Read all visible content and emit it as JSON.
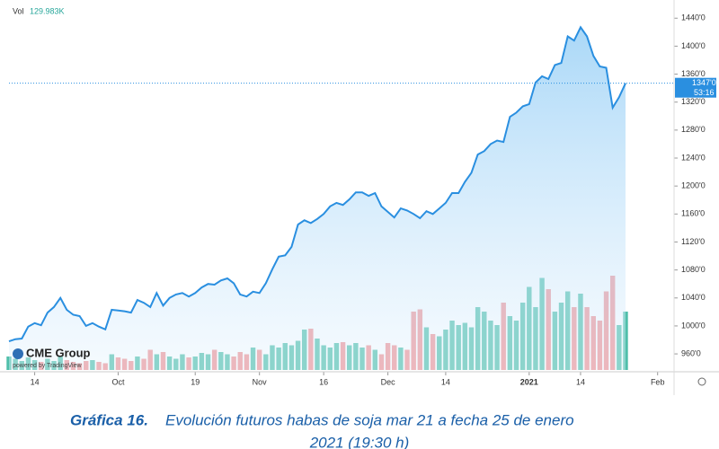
{
  "chart_data": {
    "type": "area",
    "volume_label": "Vol",
    "volume_value_label": "129.983K",
    "logo": "CME Group",
    "powered_by": "powered by TradingView",
    "price_marker": {
      "value": 1347,
      "label": "1347'0"
    },
    "countdown": "53:16",
    "caption_bold": "Gráfica 16.",
    "caption_line1": "Evolución futuros habas de soja mar 21 a fecha 25 de enero",
    "caption_line2": "2021 (19:30 h)",
    "color": "#2a8fe0",
    "volume_up_color": "#4fbfaa",
    "volume_down_color": "#f08f92",
    "categories": [
      null,
      null,
      null,
      null,
      "14",
      null,
      null,
      null,
      null,
      null,
      null,
      null,
      null,
      null,
      null,
      null,
      null,
      "Oct",
      null,
      null,
      null,
      null,
      null,
      null,
      null,
      null,
      null,
      null,
      null,
      "19",
      null,
      null,
      null,
      null,
      null,
      null,
      null,
      null,
      null,
      "Nov",
      null,
      null,
      null,
      null,
      null,
      null,
      null,
      null,
      null,
      "16",
      null,
      null,
      null,
      null,
      null,
      null,
      null,
      null,
      null,
      "Dec",
      null,
      null,
      null,
      null,
      null,
      null,
      null,
      null,
      "14",
      null,
      null,
      null,
      null,
      null,
      null,
      null,
      null,
      null,
      null,
      null,
      null,
      "2021",
      null,
      null,
      null,
      null,
      null,
      null,
      null,
      "14",
      null,
      null,
      null,
      null,
      null,
      null,
      null,
      null,
      null,
      null,
      null,
      "Feb",
      null,
      null
    ],
    "values": [
      978,
      981,
      982,
      999,
      1004,
      1001,
      1019,
      1027,
      1040,
      1023,
      1016,
      1014,
      1000,
      1004,
      999,
      995,
      1023,
      1022,
      1021,
      1019,
      1037,
      1033,
      1027,
      1047,
      1029,
      1040,
      1045,
      1047,
      1042,
      1047,
      1055,
      1060,
      1059,
      1065,
      1068,
      1061,
      1045,
      1042,
      1049,
      1047,
      1061,
      1081,
      1099,
      1101,
      1113,
      1145,
      1151,
      1147,
      1153,
      1160,
      1171,
      1176,
      1173,
      1181,
      1191,
      1191,
      1186,
      1190,
      1171,
      1163,
      1155,
      1168,
      1165,
      1160,
      1154,
      1164,
      1160,
      1168,
      1176,
      1190,
      1190,
      1206,
      1219,
      1245,
      1250,
      1260,
      1265,
      1263,
      1299,
      1305,
      1314,
      1317,
      1348,
      1357,
      1353,
      1373,
      1376,
      1414,
      1408,
      1427,
      1414,
      1386,
      1371,
      1369,
      1312,
      1327,
      1347,
      null,
      null,
      null,
      null,
      null,
      null,
      null
    ],
    "volume": [
      30,
      25,
      20,
      28,
      22,
      18,
      25,
      20,
      30,
      22,
      18,
      15,
      20,
      22,
      18,
      15,
      35,
      28,
      25,
      20,
      30,
      25,
      45,
      35,
      40,
      30,
      25,
      35,
      28,
      30,
      38,
      35,
      45,
      40,
      35,
      30,
      40,
      35,
      50,
      45,
      35,
      55,
      50,
      60,
      55,
      65,
      90,
      92,
      70,
      55,
      50,
      60,
      62,
      55,
      60,
      50,
      55,
      45,
      35,
      60,
      55,
      50,
      45,
      130,
      135,
      95,
      80,
      75,
      90,
      110,
      100,
      105,
      95,
      140,
      130,
      110,
      100,
      150,
      120,
      110,
      150,
      185,
      140,
      205,
      180,
      130,
      150,
      175,
      140,
      170,
      140,
      120,
      110,
      175,
      210,
      100,
      130,
      null,
      null,
      null,
      null,
      null,
      null,
      null
    ],
    "ylim": [
      937,
      1466
    ],
    "yticks": [
      {
        "value": 960,
        "label": "960'0"
      },
      {
        "value": 1000,
        "label": "1000'0"
      },
      {
        "value": 1040,
        "label": "1040'0"
      },
      {
        "value": 1080,
        "label": "1080'0"
      },
      {
        "value": 1120,
        "label": "1120'0"
      },
      {
        "value": 1160,
        "label": "1160'0"
      },
      {
        "value": 1200,
        "label": "1200'0"
      },
      {
        "value": 1240,
        "label": "1240'0"
      },
      {
        "value": 1280,
        "label": "1280'0"
      },
      {
        "value": 1320,
        "label": "1320'0"
      },
      {
        "value": 1360,
        "label": "1360'0"
      },
      {
        "value": 1400,
        "label": "1400'0"
      },
      {
        "value": 1440,
        "label": "1440'0"
      }
    ]
  }
}
